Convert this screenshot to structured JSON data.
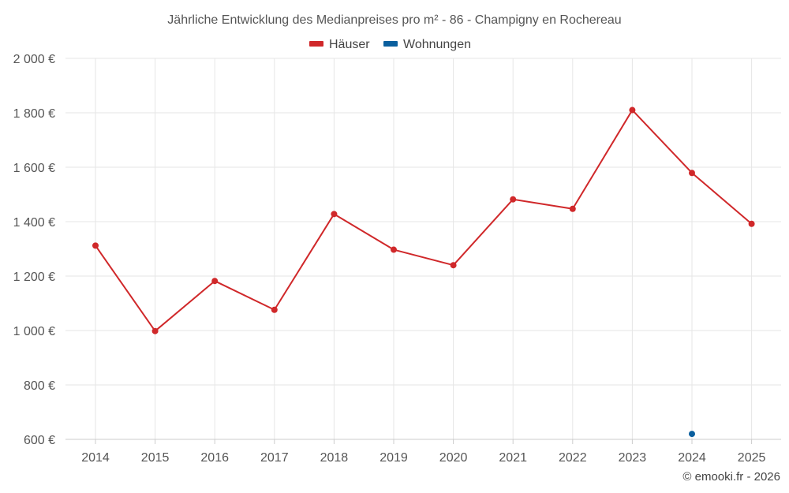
{
  "chart_data": {
    "type": "line",
    "title": "Jährliche Entwicklung des Medianpreises pro m² - 86 - Champigny en Rochereau",
    "xlabel": "",
    "ylabel": "",
    "categories": [
      "2014",
      "2015",
      "2016",
      "2017",
      "2018",
      "2019",
      "2020",
      "2021",
      "2022",
      "2023",
      "2024",
      "2025"
    ],
    "y_ticks": [
      600,
      800,
      1000,
      1200,
      1400,
      1600,
      1800,
      2000
    ],
    "y_tick_labels": [
      "600 €",
      "800 €",
      "1 000 €",
      "1 200 €",
      "1 400 €",
      "1 600 €",
      "1 800 €",
      "2 000 €"
    ],
    "ylim": [
      600,
      2000
    ],
    "grid": true,
    "legend_position": "top-center",
    "series": [
      {
        "name": "Häuser",
        "color": "#d0282a",
        "values": [
          1312,
          998,
          1182,
          1076,
          1428,
          1297,
          1240,
          1482,
          1447,
          1810,
          1579,
          1392
        ]
      },
      {
        "name": "Wohnungen",
        "color": "#0a5f9e",
        "values": [
          null,
          null,
          null,
          null,
          null,
          null,
          null,
          null,
          null,
          null,
          620,
          null
        ]
      }
    ]
  },
  "credit": "© emooki.fr - 2026"
}
